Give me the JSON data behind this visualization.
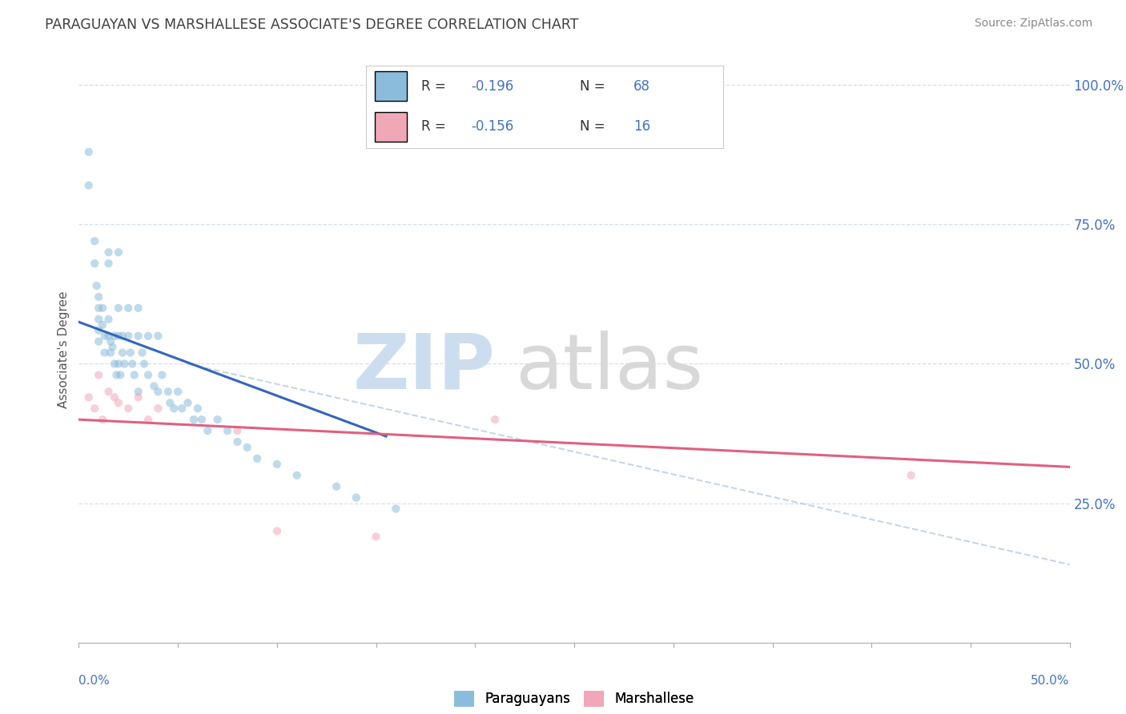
{
  "title": "PARAGUAYAN VS MARSHALLESE ASSOCIATE'S DEGREE CORRELATION CHART",
  "source": "Source: ZipAtlas.com",
  "xlim": [
    0.0,
    0.5
  ],
  "ylim": [
    0.0,
    1.05
  ],
  "ylabel_right_labels": [
    "25.0%",
    "50.0%",
    "75.0%",
    "100.0%"
  ],
  "ylabel_right_positions": [
    0.25,
    0.5,
    0.75,
    1.0
  ],
  "blue_scatter_x": [
    0.005,
    0.005,
    0.008,
    0.008,
    0.009,
    0.01,
    0.01,
    0.01,
    0.01,
    0.01,
    0.012,
    0.012,
    0.013,
    0.013,
    0.015,
    0.015,
    0.015,
    0.015,
    0.016,
    0.016,
    0.017,
    0.018,
    0.018,
    0.019,
    0.02,
    0.02,
    0.02,
    0.02,
    0.021,
    0.022,
    0.022,
    0.023,
    0.025,
    0.025,
    0.026,
    0.027,
    0.028,
    0.03,
    0.03,
    0.03,
    0.032,
    0.033,
    0.035,
    0.035,
    0.038,
    0.04,
    0.04,
    0.042,
    0.045,
    0.046,
    0.048,
    0.05,
    0.052,
    0.055,
    0.058,
    0.06,
    0.062,
    0.065,
    0.07,
    0.075,
    0.08,
    0.085,
    0.09,
    0.1,
    0.11,
    0.13,
    0.14,
    0.16
  ],
  "blue_scatter_y": [
    0.88,
    0.82,
    0.72,
    0.68,
    0.64,
    0.62,
    0.6,
    0.58,
    0.56,
    0.54,
    0.6,
    0.57,
    0.55,
    0.52,
    0.7,
    0.68,
    0.58,
    0.55,
    0.54,
    0.52,
    0.53,
    0.55,
    0.5,
    0.48,
    0.7,
    0.6,
    0.55,
    0.5,
    0.48,
    0.55,
    0.52,
    0.5,
    0.6,
    0.55,
    0.52,
    0.5,
    0.48,
    0.6,
    0.55,
    0.45,
    0.52,
    0.5,
    0.55,
    0.48,
    0.46,
    0.55,
    0.45,
    0.48,
    0.45,
    0.43,
    0.42,
    0.45,
    0.42,
    0.43,
    0.4,
    0.42,
    0.4,
    0.38,
    0.4,
    0.38,
    0.36,
    0.35,
    0.33,
    0.32,
    0.3,
    0.28,
    0.26,
    0.24
  ],
  "pink_scatter_x": [
    0.005,
    0.008,
    0.01,
    0.012,
    0.015,
    0.018,
    0.02,
    0.025,
    0.03,
    0.035,
    0.04,
    0.08,
    0.1,
    0.15,
    0.21,
    0.42
  ],
  "pink_scatter_y": [
    0.44,
    0.42,
    0.48,
    0.4,
    0.45,
    0.44,
    0.43,
    0.42,
    0.44,
    0.4,
    0.42,
    0.38,
    0.2,
    0.19,
    0.4,
    0.3
  ],
  "blue_line_x": [
    0.0,
    0.155
  ],
  "blue_line_y": [
    0.575,
    0.37
  ],
  "pink_line_x": [
    0.0,
    0.5
  ],
  "pink_line_y": [
    0.4,
    0.315
  ],
  "ref_line_x": [
    0.055,
    0.5
  ],
  "ref_line_y": [
    0.5,
    0.14
  ],
  "scatter_alpha": 0.55,
  "scatter_size": 55,
  "blue_color": "#8bbcdc",
  "pink_color": "#f0a8b8",
  "blue_line_color": "#3366bb",
  "pink_line_color": "#e06080",
  "ref_line_color": "#b0c4d8",
  "background_color": "#ffffff",
  "grid_color": "#c8d8e8",
  "title_color": "#404040",
  "source_color": "#888888",
  "axis_label_color": "#4472c4",
  "watermark_zip_color": "#ccddef",
  "watermark_atlas_color": "#d8d8d8"
}
